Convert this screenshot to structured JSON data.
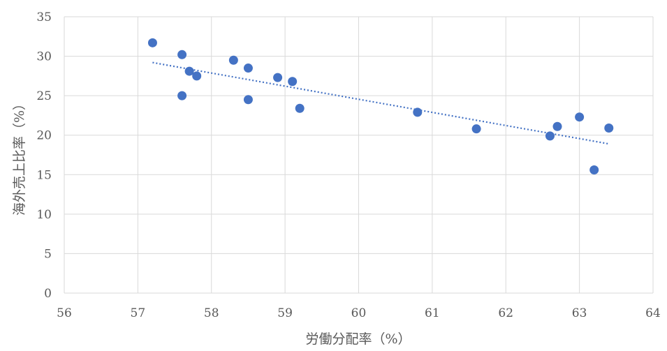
{
  "chart_data": {
    "type": "scatter",
    "title": "",
    "xlabel": "労働分配率（%）",
    "ylabel": "海外売上比率（%）",
    "xlim": [
      56,
      64
    ],
    "ylim": [
      0,
      35
    ],
    "x_ticks": [
      56,
      57,
      58,
      59,
      60,
      61,
      62,
      63,
      64
    ],
    "y_ticks": [
      0,
      5,
      10,
      15,
      20,
      25,
      30,
      35
    ],
    "grid": true,
    "legend": "none",
    "point_color": "#4472c4",
    "series": [
      {
        "points": [
          {
            "x": 57.2,
            "y": 31.7
          },
          {
            "x": 57.6,
            "y": 30.2
          },
          {
            "x": 57.7,
            "y": 28.1
          },
          {
            "x": 57.8,
            "y": 27.5
          },
          {
            "x": 57.6,
            "y": 25.0
          },
          {
            "x": 58.3,
            "y": 29.5
          },
          {
            "x": 58.5,
            "y": 28.5
          },
          {
            "x": 58.5,
            "y": 24.5
          },
          {
            "x": 58.9,
            "y": 27.3
          },
          {
            "x": 59.1,
            "y": 26.8
          },
          {
            "x": 59.2,
            "y": 23.4
          },
          {
            "x": 60.8,
            "y": 22.9
          },
          {
            "x": 61.6,
            "y": 20.8
          },
          {
            "x": 62.6,
            "y": 19.9
          },
          {
            "x": 62.7,
            "y": 21.1
          },
          {
            "x": 63.0,
            "y": 22.3
          },
          {
            "x": 63.2,
            "y": 15.6
          },
          {
            "x": 63.4,
            "y": 20.9
          }
        ]
      }
    ],
    "trendline": {
      "style": "dotted",
      "from": {
        "x": 57.2,
        "y": 29.2
      },
      "to": {
        "x": 63.4,
        "y": 18.9
      }
    }
  }
}
